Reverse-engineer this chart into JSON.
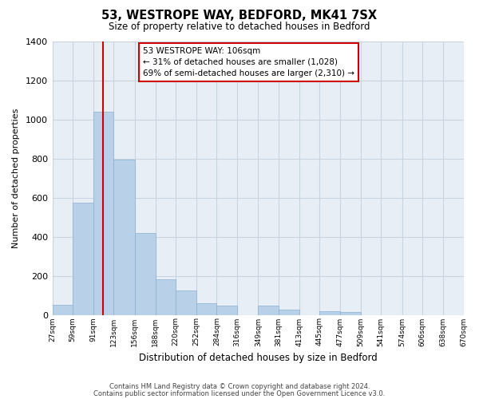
{
  "title": "53, WESTROPE WAY, BEDFORD, MK41 7SX",
  "subtitle": "Size of property relative to detached houses in Bedford",
  "xlabel": "Distribution of detached houses by size in Bedford",
  "ylabel": "Number of detached properties",
  "bar_color": "#b8d0e8",
  "bar_edge_color": "#8ab0d0",
  "vline_color": "#cc0000",
  "vline_x": 106,
  "annotation_title": "53 WESTROPE WAY: 106sqm",
  "annotation_line1": "← 31% of detached houses are smaller (1,028)",
  "annotation_line2": "69% of semi-detached houses are larger (2,310) →",
  "bins": [
    27,
    59,
    91,
    123,
    156,
    188,
    220,
    252,
    284,
    316,
    349,
    381,
    413,
    445,
    477,
    509,
    541,
    574,
    606,
    638,
    670
  ],
  "counts": [
    50,
    575,
    1040,
    795,
    420,
    180,
    125,
    60,
    45,
    0,
    45,
    25,
    0,
    20,
    15,
    0,
    0,
    0,
    0,
    0
  ],
  "tick_labels": [
    "27sqm",
    "59sqm",
    "91sqm",
    "123sqm",
    "156sqm",
    "188sqm",
    "220sqm",
    "252sqm",
    "284sqm",
    "316sqm",
    "349sqm",
    "381sqm",
    "413sqm",
    "445sqm",
    "477sqm",
    "509sqm",
    "541sqm",
    "574sqm",
    "606sqm",
    "638sqm",
    "670sqm"
  ],
  "ylim": [
    0,
    1400
  ],
  "yticks": [
    0,
    200,
    400,
    600,
    800,
    1000,
    1200,
    1400
  ],
  "footer1": "Contains HM Land Registry data © Crown copyright and database right 2024.",
  "footer2": "Contains public sector information licensed under the Open Government Licence v3.0.",
  "background_color": "#ffffff",
  "plot_bg_color": "#e8eef5",
  "grid_color": "#c8d4e0"
}
